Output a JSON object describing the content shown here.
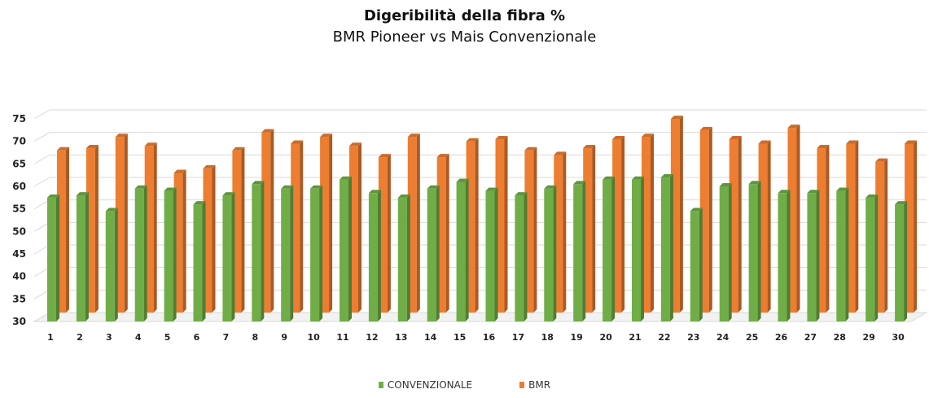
{
  "chart_data": {
    "type": "bar",
    "title": "Digeribilità della fibra %",
    "subtitle": "BMR Pioneer vs Mais Convenzionale",
    "categories": [
      "1",
      "2",
      "3",
      "4",
      "5",
      "6",
      "7",
      "8",
      "9",
      "10",
      "11",
      "12",
      "13",
      "14",
      "15",
      "16",
      "17",
      "18",
      "19",
      "20",
      "21",
      "22",
      "23",
      "24",
      "25",
      "26",
      "27",
      "28",
      "29",
      "30"
    ],
    "series": [
      {
        "name": "CONVENZIONALE",
        "color": "#70AD47",
        "values": [
          57.5,
          58,
          54.5,
          59.5,
          59,
          56,
          58,
          60.5,
          59.5,
          59.5,
          61.5,
          58.5,
          57.5,
          59.5,
          61,
          59,
          58,
          59.5,
          60.5,
          61.5,
          61.5,
          62,
          54.5,
          60,
          60.5,
          58.5,
          58.5,
          59,
          57.5,
          56
        ]
      },
      {
        "name": "BMR",
        "color": "#ED7D31",
        "values": [
          66,
          66.5,
          69,
          67,
          61,
          62,
          66,
          70,
          67.5,
          69,
          67,
          64.5,
          69,
          64.5,
          68,
          68.5,
          66,
          65,
          66.5,
          68.5,
          69,
          73,
          70.5,
          68.5,
          67.5,
          71,
          66.5,
          67.5,
          63.5,
          67.5
        ]
      }
    ],
    "ylim": [
      30,
      75
    ],
    "yticks": [
      30,
      35,
      40,
      45,
      50,
      55,
      60,
      65,
      70,
      75
    ],
    "grid": true,
    "legend": "bottom"
  }
}
